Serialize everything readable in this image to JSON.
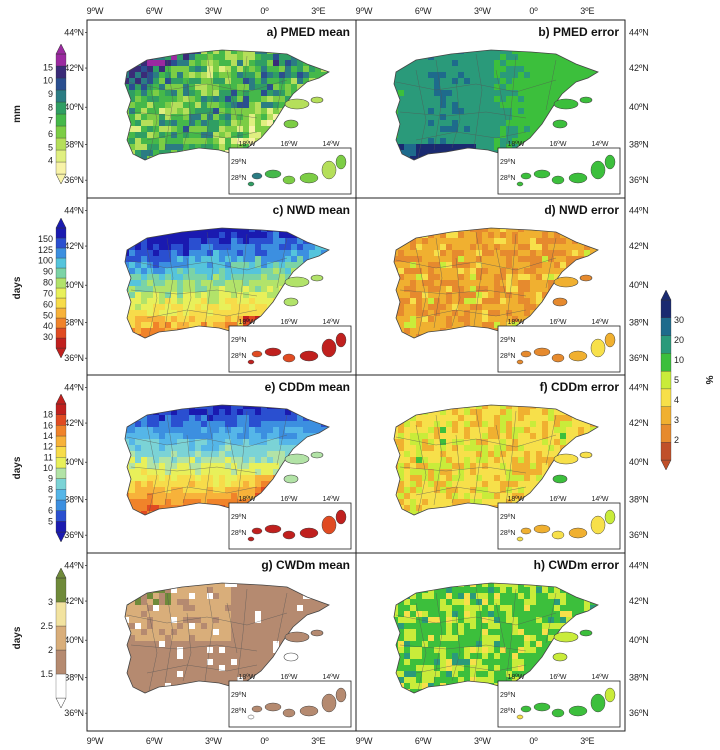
{
  "chart_data": {
    "type": "map-grid",
    "layout": {
      "rows": 4,
      "cols": 2
    },
    "top_lon_ticks": [
      "9ºW",
      "6ºW",
      "3ºW",
      "0º",
      "3ºE"
    ],
    "bottom_lon_ticks": [
      "9ºW",
      "6ºW",
      "3ºW",
      "0º",
      "3ºE"
    ],
    "lat_ticks": [
      "44ºN",
      "42ºN",
      "40ºN",
      "38ºN",
      "36ºN"
    ],
    "inset": {
      "lon_ticks": [
        "18ºW",
        "16ºW",
        "14ºW"
      ],
      "lat_ticks": [
        "29ºN",
        "28ºN"
      ]
    },
    "panels": [
      {
        "label": "a) PMED mean",
        "row": 0,
        "col": 0,
        "scale": "pmed"
      },
      {
        "label": "b) PMED error",
        "row": 0,
        "col": 1,
        "scale": "err"
      },
      {
        "label": "c) NWD mean",
        "row": 1,
        "col": 0,
        "scale": "nwd"
      },
      {
        "label": "d) NWD error",
        "row": 1,
        "col": 1,
        "scale": "err"
      },
      {
        "label": "e) CDDm mean",
        "row": 2,
        "col": 0,
        "scale": "cdd"
      },
      {
        "label": "f) CDDm error",
        "row": 2,
        "col": 1,
        "scale": "err"
      },
      {
        "label": "g) CWDm mean",
        "row": 3,
        "col": 0,
        "scale": "cwd"
      },
      {
        "label": "h) CWDm error",
        "row": 3,
        "col": 1,
        "scale": "err"
      }
    ],
    "colorbars": [
      {
        "id": "pmed",
        "unit": "mm",
        "ticks": [
          "4",
          "5",
          "6",
          "7",
          "8",
          "9",
          "10",
          "15"
        ],
        "colors": [
          "#f8f3a8",
          "#e0ef80",
          "#b5df5a",
          "#7ccd45",
          "#45b84a",
          "#2f9e63",
          "#2b7c83",
          "#2a4f90",
          "#3a2b78",
          "#9b2aa0"
        ]
      },
      {
        "id": "nwd",
        "unit": "days",
        "ticks": [
          "30",
          "40",
          "50",
          "60",
          "70",
          "80",
          "90",
          "100",
          "125",
          "150"
        ],
        "colors": [
          "#c0201e",
          "#e04b22",
          "#f0832a",
          "#f7b23a",
          "#f7dc4a",
          "#e8f05a",
          "#b2e36a",
          "#7bd3a6",
          "#55c4dc",
          "#3c8fe0",
          "#2a4fd0",
          "#1a1ab0"
        ]
      },
      {
        "id": "cdd",
        "unit": "days",
        "ticks": [
          "5",
          "6",
          "7",
          "8",
          "9",
          "10",
          "11",
          "12",
          "14",
          "16",
          "18"
        ],
        "colors": [
          "#1a1ab0",
          "#2a4fd0",
          "#3c8fe0",
          "#55b6e8",
          "#7bd3d6",
          "#b2e3a6",
          "#e8f05a",
          "#f7dc4a",
          "#f7b23a",
          "#f0832a",
          "#e04b22",
          "#c0201e"
        ]
      },
      {
        "id": "cwd",
        "unit": "days",
        "ticks": [
          "1.5",
          "2",
          "2.5",
          "3"
        ],
        "colors": [
          "#ffffff",
          "#b58a70",
          "#d9ae7a",
          "#f2e3a0",
          "#6f8a3a"
        ]
      },
      {
        "id": "err",
        "unit": "%",
        "ticks": [
          "2",
          "3",
          "4",
          "5",
          "10",
          "20",
          "30"
        ],
        "colors": [
          "#c0502a",
          "#e68a2e",
          "#f0b030",
          "#f7e04a",
          "#c9ec3a",
          "#3cbf3c",
          "#2a9a7a",
          "#1e6b8c",
          "#1a2a70"
        ]
      }
    ]
  }
}
